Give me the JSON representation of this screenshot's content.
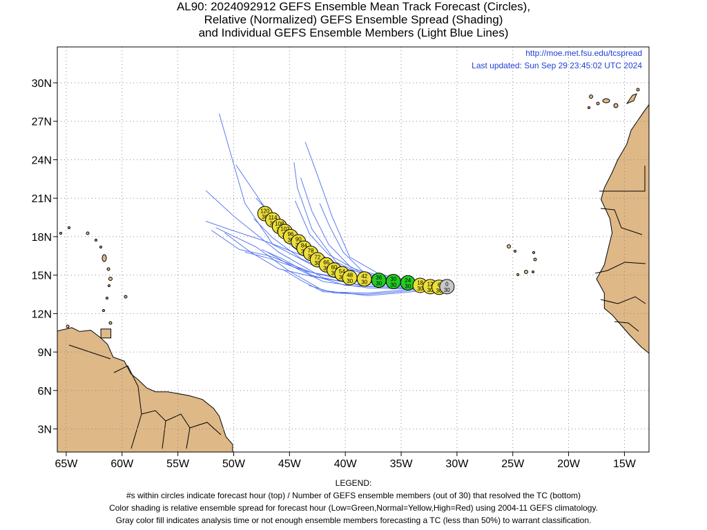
{
  "title": {
    "line1": "AL90: 2024092912 GEFS Ensemble Mean Track Forecast (Circles),",
    "line2": "Relative (Normalized) GEFS Ensemble Spread (Shading)",
    "line3": "and Individual GEFS Ensemble Members (Light Blue Lines)"
  },
  "header": {
    "url": "http://moe.met.fsu.edu/tcspread",
    "updated": "Last updated: Sun Sep 29 23:45:02 UTC 2024"
  },
  "map": {
    "lon_range": [
      -65.8,
      -12.8
    ],
    "lat_range": [
      1.2,
      32.8
    ],
    "lon_ticks": [
      {
        "value": -65,
        "label": "65W"
      },
      {
        "value": -60,
        "label": "60W"
      },
      {
        "value": -55,
        "label": "55W"
      },
      {
        "value": -50,
        "label": "50W"
      },
      {
        "value": -45,
        "label": "45W"
      },
      {
        "value": -40,
        "label": "40W"
      },
      {
        "value": -35,
        "label": "35W"
      },
      {
        "value": -30,
        "label": "30W"
      },
      {
        "value": -25,
        "label": "25W"
      },
      {
        "value": -20,
        "label": "20W"
      },
      {
        "value": -15,
        "label": "15W"
      }
    ],
    "lat_ticks": [
      {
        "value": 3,
        "label": "3N"
      },
      {
        "value": 6,
        "label": "6N"
      },
      {
        "value": 9,
        "label": "9N"
      },
      {
        "value": 12,
        "label": "12N"
      },
      {
        "value": 15,
        "label": "15N"
      },
      {
        "value": 18,
        "label": "18N"
      },
      {
        "value": 21,
        "label": "21N"
      },
      {
        "value": 24,
        "label": "24N"
      },
      {
        "value": 27,
        "label": "27N"
      },
      {
        "value": 30,
        "label": "30N"
      }
    ],
    "grid": true,
    "colors": {
      "land": "#deb887",
      "member_line": "#4a6cf0",
      "spread_low": "#22cc22",
      "spread_normal": "#ecdf3a",
      "analysis": "#c8c8c8"
    },
    "mean_track": [
      {
        "hour": "0",
        "members": "30",
        "lon": -30.9,
        "lat": 14.1,
        "spread": "analysis"
      },
      {
        "hour": "6",
        "members": "30",
        "lon": -31.6,
        "lat": 14.05,
        "spread": "normal"
      },
      {
        "hour": "12",
        "members": "30",
        "lon": -32.4,
        "lat": 14.1,
        "spread": "normal"
      },
      {
        "hour": "18",
        "members": "30",
        "lon": -33.3,
        "lat": 14.2,
        "spread": "normal"
      },
      {
        "hour": "24",
        "members": "30",
        "lon": -34.4,
        "lat": 14.4,
        "spread": "low"
      },
      {
        "hour": "30",
        "members": "30",
        "lon": -35.7,
        "lat": 14.5,
        "spread": "low"
      },
      {
        "hour": "36",
        "members": "30",
        "lon": -37.0,
        "lat": 14.6,
        "spread": "low"
      },
      {
        "hour": "42",
        "members": "30",
        "lon": -38.3,
        "lat": 14.7,
        "spread": "normal"
      },
      {
        "hour": "48",
        "members": "30",
        "lon": -39.6,
        "lat": 14.8,
        "spread": "normal"
      },
      {
        "hour": "54",
        "members": "30",
        "lon": -40.3,
        "lat": 15.1,
        "spread": "normal"
      },
      {
        "hour": "60",
        "members": "30",
        "lon": -41.0,
        "lat": 15.4,
        "spread": "normal"
      },
      {
        "hour": "66",
        "members": "30",
        "lon": -41.7,
        "lat": 15.8,
        "spread": "normal"
      },
      {
        "hour": "72",
        "members": "30",
        "lon": -42.5,
        "lat": 16.2,
        "spread": "normal"
      },
      {
        "hour": "78",
        "members": "30",
        "lon": -43.1,
        "lat": 16.7,
        "spread": "normal"
      },
      {
        "hour": "84",
        "members": "30",
        "lon": -43.7,
        "lat": 17.1,
        "spread": "normal"
      },
      {
        "hour": "90",
        "members": "30",
        "lon": -44.2,
        "lat": 17.6,
        "spread": "normal"
      },
      {
        "hour": "96",
        "members": "30",
        "lon": -44.9,
        "lat": 18.0,
        "spread": "normal"
      },
      {
        "hour": "102",
        "members": "30",
        "lon": -45.4,
        "lat": 18.4,
        "spread": "normal"
      },
      {
        "hour": "108",
        "members": "30",
        "lon": -45.9,
        "lat": 18.8,
        "spread": "normal"
      },
      {
        "hour": "114",
        "members": "30",
        "lon": -46.5,
        "lat": 19.3,
        "spread": "normal"
      },
      {
        "hour": "120",
        "members": "30",
        "lon": -47.2,
        "lat": 19.8,
        "spread": "normal"
      }
    ],
    "member_tracks": [
      [
        [
          -30.9,
          14.1
        ],
        [
          -34,
          13.7
        ],
        [
          -38,
          13.4
        ],
        [
          -42,
          13.8
        ],
        [
          -45,
          15.3
        ],
        [
          -48,
          17.2
        ],
        [
          -51.6,
          18.7
        ]
      ],
      [
        [
          -30.9,
          14.1
        ],
        [
          -34,
          14.0
        ],
        [
          -38,
          14.1
        ],
        [
          -42,
          14.8
        ],
        [
          -46,
          16.8
        ],
        [
          -50,
          19.6
        ],
        [
          -52.5,
          21.6
        ]
      ],
      [
        [
          -30.9,
          14.1
        ],
        [
          -34,
          14.2
        ],
        [
          -38,
          14.4
        ],
        [
          -42,
          15.4
        ],
        [
          -45,
          17.4
        ],
        [
          -47.3,
          20.4
        ],
        [
          -49.8,
          23.6
        ]
      ],
      [
        [
          -30.9,
          14.1
        ],
        [
          -34,
          14.3
        ],
        [
          -38,
          14.6
        ],
        [
          -41.5,
          15.6
        ],
        [
          -44,
          17.2
        ],
        [
          -46,
          19.2
        ],
        [
          -48,
          21.0
        ]
      ],
      [
        [
          -30.9,
          14.1
        ],
        [
          -34,
          14.4
        ],
        [
          -38,
          14.9
        ],
        [
          -40.8,
          16.0
        ],
        [
          -43,
          18.6
        ],
        [
          -44.3,
          21.8
        ],
        [
          -44.6,
          23.8
        ]
      ],
      [
        [
          -30.9,
          14.1
        ],
        [
          -34,
          14.5
        ],
        [
          -37,
          15.1
        ],
        [
          -39.6,
          16.4
        ],
        [
          -41.2,
          19.6
        ],
        [
          -42.5,
          22.8
        ],
        [
          -43.6,
          25.4
        ]
      ],
      [
        [
          -30.9,
          14.1
        ],
        [
          -34,
          14.3
        ],
        [
          -38,
          14.9
        ],
        [
          -40.2,
          16.8
        ],
        [
          -41.4,
          18.8
        ],
        [
          -42.3,
          20.6
        ]
      ],
      [
        [
          -30.9,
          14.1
        ],
        [
          -35,
          14.4
        ],
        [
          -39,
          14.9
        ],
        [
          -43,
          15.8
        ],
        [
          -46.5,
          17.4
        ],
        [
          -49,
          20.6
        ],
        [
          -51.3,
          27.6
        ]
      ],
      [
        [
          -30.9,
          14.1
        ],
        [
          -35,
          14.3
        ],
        [
          -39,
          14.6
        ],
        [
          -43,
          15.2
        ],
        [
          -46.8,
          16.5
        ],
        [
          -49.5,
          17.0
        ],
        [
          -52,
          18.5
        ]
      ],
      [
        [
          -30.9,
          14.1
        ],
        [
          -35,
          14.1
        ],
        [
          -39,
          14.3
        ],
        [
          -43,
          14.9
        ],
        [
          -46,
          15.5
        ],
        [
          -48.5,
          16.8
        ],
        [
          -50.8,
          18.3
        ]
      ],
      [
        [
          -30.9,
          14.1
        ],
        [
          -34,
          13.9
        ],
        [
          -38,
          13.6
        ],
        [
          -42,
          13.7
        ],
        [
          -44,
          14.6
        ],
        [
          -45.5,
          15.4
        ]
      ],
      [
        [
          -30.9,
          14.1
        ],
        [
          -34,
          13.8
        ],
        [
          -38,
          13.5
        ],
        [
          -41,
          13.6
        ],
        [
          -43.3,
          14.2
        ]
      ],
      [
        [
          -30.9,
          14.1
        ],
        [
          -35,
          14.2
        ],
        [
          -40,
          14.6
        ],
        [
          -43.5,
          15.3
        ],
        [
          -46.8,
          16.3
        ],
        [
          -49,
          16.8
        ]
      ],
      [
        [
          -30.9,
          14.1
        ],
        [
          -35,
          14.4
        ],
        [
          -40,
          15.0
        ],
        [
          -43.5,
          16.4
        ],
        [
          -47,
          17.6
        ],
        [
          -50.5,
          18.6
        ],
        [
          -52.5,
          19.2
        ]
      ],
      [
        [
          -30.9,
          14.1
        ],
        [
          -35,
          14.5
        ],
        [
          -40,
          15.5
        ],
        [
          -43,
          17.0
        ],
        [
          -45.5,
          19.0
        ],
        [
          -47.6,
          20.6
        ]
      ],
      [
        [
          -30.9,
          14.1
        ],
        [
          -35,
          14.6
        ],
        [
          -39,
          15.4
        ],
        [
          -41.5,
          16.6
        ],
        [
          -43.2,
          18.2
        ],
        [
          -44.5,
          20.8
        ]
      ],
      [
        [
          -30.9,
          14.1
        ],
        [
          -34,
          14.2
        ],
        [
          -38,
          14.5
        ],
        [
          -41,
          15.1
        ],
        [
          -44,
          16.3
        ],
        [
          -46.5,
          17.9
        ],
        [
          -48.2,
          19.4
        ]
      ],
      [
        [
          -30.9,
          14.1
        ],
        [
          -34,
          13.9
        ],
        [
          -38,
          14.0
        ],
        [
          -42,
          14.5
        ],
        [
          -45,
          15.8
        ],
        [
          -47,
          16.8
        ]
      ],
      [
        [
          -30.9,
          14.1
        ],
        [
          -35,
          14.0
        ],
        [
          -40,
          14.2
        ],
        [
          -43,
          15.0
        ],
        [
          -45.7,
          16.3
        ],
        [
          -47.5,
          17.0
        ]
      ],
      [
        [
          -30.9,
          14.1
        ],
        [
          -34,
          14.4
        ],
        [
          -37,
          14.8
        ],
        [
          -39.5,
          15.6
        ],
        [
          -41.5,
          17.4
        ],
        [
          -43,
          20.0
        ],
        [
          -44,
          22.6
        ]
      ],
      [
        [
          -30.9,
          14.1
        ],
        [
          -35,
          14.3
        ],
        [
          -39,
          14.7
        ],
        [
          -42,
          15.6
        ],
        [
          -44.5,
          17.6
        ],
        [
          -46.6,
          19.9
        ]
      ]
    ],
    "land_polygons": [
      [
        [
          -66,
          10.6
        ],
        [
          -64.5,
          10.9
        ],
        [
          -63.8,
          10.6
        ],
        [
          -62.8,
          10.7
        ],
        [
          -61.9,
          10.1
        ],
        [
          -61.3,
          9.6
        ],
        [
          -60.8,
          8.6
        ],
        [
          -59.8,
          8.3
        ],
        [
          -59.2,
          7.3
        ],
        [
          -58.5,
          6.8
        ],
        [
          -57.8,
          6.2
        ],
        [
          -57.0,
          5.9
        ],
        [
          -55.9,
          5.9
        ],
        [
          -54.0,
          5.6
        ],
        [
          -52.8,
          5.3
        ],
        [
          -51.8,
          4.6
        ],
        [
          -51.3,
          4.0
        ],
        [
          -50.7,
          2.4
        ],
        [
          -50.1,
          1.8
        ],
        [
          -50.1,
          1.2
        ],
        [
          -66,
          1.2
        ]
      ],
      [
        [
          -12.8,
          28.3
        ],
        [
          -13.3,
          27.7
        ],
        [
          -14.4,
          26.3
        ],
        [
          -14.8,
          25.2
        ],
        [
          -15.6,
          24.0
        ],
        [
          -16.1,
          23.0
        ],
        [
          -16.8,
          21.8
        ],
        [
          -17.1,
          20.9
        ],
        [
          -16.3,
          19.4
        ],
        [
          -16.1,
          18.3
        ],
        [
          -16.5,
          16.9
        ],
        [
          -16.8,
          15.8
        ],
        [
          -17.5,
          14.7
        ],
        [
          -16.8,
          13.6
        ],
        [
          -16.8,
          12.4
        ],
        [
          -16.1,
          11.9
        ],
        [
          -15.2,
          11.0
        ],
        [
          -14.5,
          10.3
        ],
        [
          -13.5,
          9.4
        ],
        [
          -12.8,
          8.9
        ]
      ],
      [
        [
          -61.9,
          10.8
        ],
        [
          -61.0,
          10.8
        ],
        [
          -61.0,
          10.1
        ],
        [
          -61.9,
          10.1
        ]
      ]
    ]
  },
  "legend": {
    "heading": "LEGEND:",
    "line1": "#s within circles indicate forecast hour (top) / Number of GEFS ensemble members (out of 30) that resolved the TC (bottom)",
    "line2": "Color shading is relative ensemble spread for forecast hour (Low=Green,Normal=Yellow,High=Red) using 2004-11 GEFS climatology.",
    "line3": "Gray color fill indicates analysis time or not enough ensemble members forecasting a TC (less than 50%) to warrant classification."
  }
}
